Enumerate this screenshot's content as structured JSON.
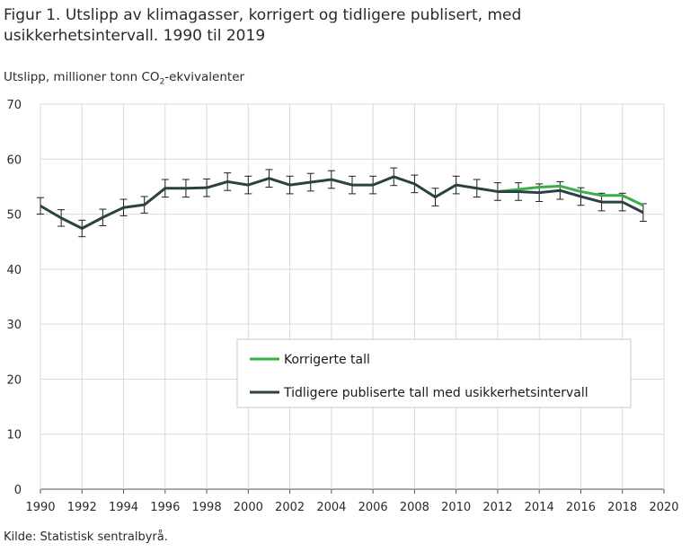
{
  "figure": {
    "title": "Figur 1. Utslipp av klimagasser, korrigert og tidligere publisert, med usikkerhetsintervall. 1990 til 2019",
    "ylabel_pre": "Utslipp,  millioner  tonn CO",
    "ylabel_sub": "2",
    "ylabel_post": "-ekvivalenter",
    "source": "Kilde: Statistisk sentralbyrå."
  },
  "chart_data": {
    "type": "line",
    "title": "Figur 1. Utslipp av klimagasser, korrigert og tidligere publisert, med usikkerhetsintervall. 1990 til 2019",
    "xlabel": "",
    "ylabel": "Utslipp, millioner tonn CO2-ekvivalenter",
    "xlim": [
      1990,
      2020
    ],
    "ylim": [
      0,
      70
    ],
    "xticks": [
      1990,
      1992,
      1994,
      1996,
      1998,
      2000,
      2002,
      2004,
      2006,
      2008,
      2010,
      2012,
      2014,
      2016,
      2018,
      2020
    ],
    "yticks": [
      0,
      10,
      20,
      30,
      40,
      50,
      60,
      70
    ],
    "grid": true,
    "legend_position": "center-right",
    "x": [
      1990,
      1991,
      1992,
      1993,
      1994,
      1995,
      1996,
      1997,
      1998,
      1999,
      2000,
      2001,
      2002,
      2003,
      2004,
      2005,
      2006,
      2007,
      2008,
      2009,
      2010,
      2011,
      2012,
      2013,
      2014,
      2015,
      2016,
      2017,
      2018,
      2019
    ],
    "series": [
      {
        "name": "Korrigerte tall",
        "color": "#3cae49",
        "x": [
          2012,
          2013,
          2014,
          2015,
          2016,
          2017,
          2018,
          2019
        ],
        "values": [
          54.1,
          54.5,
          54.9,
          55.1,
          54.1,
          53.4,
          53.4,
          51.6
        ]
      },
      {
        "name": "Tidligere publiserte tall med usikkerhetsintervall",
        "color": "#2b4142",
        "values": [
          51.5,
          49.3,
          47.4,
          49.4,
          51.2,
          51.7,
          54.7,
          54.7,
          54.8,
          55.9,
          55.3,
          56.5,
          55.3,
          55.8,
          56.3,
          55.3,
          55.3,
          56.8,
          55.5,
          53.1,
          55.3,
          54.7,
          54.1,
          54.1,
          53.9,
          54.3,
          53.2,
          52.2,
          52.2,
          50.3
        ],
        "error_lower": [
          50.0,
          47.8,
          45.9,
          47.9,
          49.7,
          50.2,
          53.1,
          53.1,
          53.2,
          54.3,
          53.7,
          54.9,
          53.7,
          54.2,
          54.7,
          53.7,
          53.7,
          55.2,
          53.9,
          51.5,
          53.7,
          53.1,
          52.5,
          52.5,
          52.3,
          52.7,
          51.6,
          50.6,
          50.6,
          48.7
        ],
        "error_upper": [
          53.0,
          50.8,
          48.9,
          50.9,
          52.7,
          53.2,
          56.3,
          56.3,
          56.4,
          57.5,
          56.9,
          58.1,
          56.9,
          57.4,
          57.9,
          56.9,
          56.9,
          58.4,
          57.1,
          54.7,
          56.9,
          56.3,
          55.7,
          55.7,
          55.5,
          55.9,
          54.8,
          53.8,
          53.8,
          51.9
        ]
      }
    ]
  }
}
